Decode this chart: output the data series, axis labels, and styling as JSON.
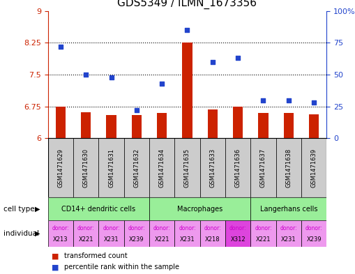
{
  "title": "GDS5349 / ILMN_1673356",
  "samples": [
    "GSM1471629",
    "GSM1471630",
    "GSM1471631",
    "GSM1471632",
    "GSM1471634",
    "GSM1471635",
    "GSM1471633",
    "GSM1471636",
    "GSM1471637",
    "GSM1471638",
    "GSM1471639"
  ],
  "bar_values": [
    6.75,
    6.62,
    6.55,
    6.55,
    6.6,
    8.25,
    6.68,
    6.75,
    6.6,
    6.6,
    6.57
  ],
  "scatter_values": [
    72,
    50,
    48,
    22,
    43,
    85,
    60,
    63,
    30,
    30,
    28
  ],
  "ylim_left": [
    6,
    9
  ],
  "ylim_right": [
    0,
    100
  ],
  "yticks_left": [
    6,
    6.75,
    7.5,
    8.25,
    9
  ],
  "yticks_right": [
    0,
    25,
    50,
    75,
    100
  ],
  "ytick_labels_left": [
    "6",
    "6.75",
    "7.5",
    "8.25",
    "9"
  ],
  "ytick_labels_right": [
    "0",
    "25",
    "50",
    "75",
    "100%"
  ],
  "hlines": [
    6.75,
    7.5,
    8.25
  ],
  "bar_color": "#cc2200",
  "scatter_color": "#2244cc",
  "cell_groups": [
    {
      "label": "CD14+ dendritic cells",
      "indices": [
        0,
        1,
        2,
        3
      ],
      "color": "#99ee99"
    },
    {
      "label": "Macrophages",
      "indices": [
        4,
        5,
        6,
        7
      ],
      "color": "#99ee99"
    },
    {
      "label": "Langerhans cells",
      "indices": [
        8,
        9,
        10
      ],
      "color": "#99ee99"
    }
  ],
  "individuals": [
    {
      "donor": "X213",
      "bg": "#ee99ee"
    },
    {
      "donor": "X221",
      "bg": "#ee99ee"
    },
    {
      "donor": "X231",
      "bg": "#ee99ee"
    },
    {
      "donor": "X239",
      "bg": "#ee99ee"
    },
    {
      "donor": "X221",
      "bg": "#ee99ee"
    },
    {
      "donor": "X231",
      "bg": "#ee99ee"
    },
    {
      "donor": "X218",
      "bg": "#ee99ee"
    },
    {
      "donor": "X312",
      "bg": "#dd44dd"
    },
    {
      "donor": "X221",
      "bg": "#ee99ee"
    },
    {
      "donor": "X231",
      "bg": "#ee99ee"
    },
    {
      "donor": "X239",
      "bg": "#ee99ee"
    }
  ],
  "sample_bg": "#cccccc",
  "legend_transformed": "transformed count",
  "legend_percentile": "percentile rank within the sample",
  "label_cell_type": "cell type",
  "label_individual": "individual",
  "donor_label_color": "#cc00cc",
  "background_color": "#ffffff",
  "fig_width": 5.09,
  "fig_height": 3.93,
  "dpi": 100
}
